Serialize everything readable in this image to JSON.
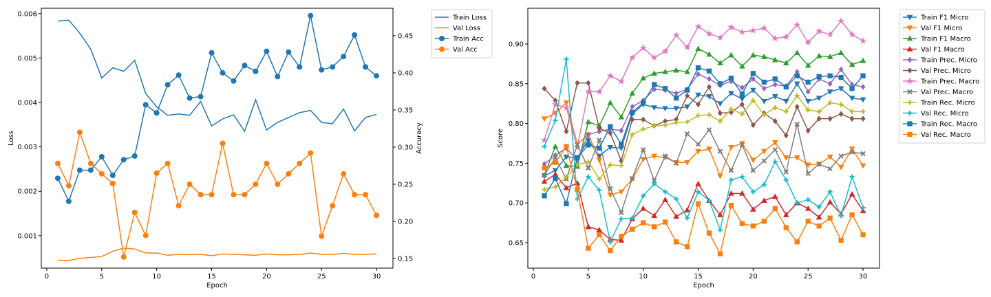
{
  "chart_data": [
    {
      "type": "line",
      "xlabel": "Epoch",
      "ylabel_left": "Loss",
      "ylabel_right": "Accuracy",
      "xlim": [
        -0.5,
        31.5
      ],
      "xticks": [
        "0",
        "5",
        "10",
        "15",
        "20",
        "25",
        "30"
      ],
      "ylim_left": [
        0.00027,
        0.00612
      ],
      "yticks_left": [
        "0.001",
        "0.002",
        "0.003",
        "0.004",
        "0.005",
        "0.006"
      ],
      "ylim_right": [
        0.137,
        0.487
      ],
      "yticks_right": [
        "0.15",
        "0.20",
        "0.25",
        "0.30",
        "0.35",
        "0.40",
        "0.45"
      ],
      "legend_position": "outside top-right",
      "x": [
        1,
        2,
        3,
        4,
        5,
        6,
        7,
        8,
        9,
        10,
        11,
        12,
        13,
        14,
        15,
        16,
        17,
        18,
        19,
        20,
        21,
        22,
        23,
        24,
        25,
        26,
        27,
        28,
        29,
        30
      ],
      "series": [
        {
          "name": "Train Loss",
          "axis": "left",
          "color": "#1f77b4",
          "marker": "none",
          "values": [
            0.00583,
            0.00585,
            0.00556,
            0.0052,
            0.00455,
            0.00478,
            0.0047,
            0.00495,
            0.0042,
            0.0039,
            0.00371,
            0.00374,
            0.00371,
            0.00402,
            0.00347,
            0.00363,
            0.00372,
            0.00335,
            0.00406,
            0.00338,
            0.00355,
            0.00366,
            0.00377,
            0.00382,
            0.00355,
            0.00352,
            0.00385,
            0.00336,
            0.00366,
            0.00373
          ]
        },
        {
          "name": "Val Loss",
          "axis": "left",
          "color": "#ff7f0e",
          "marker": "none",
          "values": [
            0.00045,
            0.00044,
            0.00049,
            0.00051,
            0.00053,
            0.00065,
            0.00072,
            0.0007,
            0.00061,
            0.00061,
            0.00056,
            0.00058,
            0.00058,
            0.00058,
            0.00055,
            0.00059,
            0.00058,
            0.00057,
            0.00056,
            0.00059,
            0.00057,
            0.00057,
            0.00058,
            0.00061,
            0.00058,
            0.00058,
            0.0006,
            0.00058,
            0.00058,
            0.00059
          ]
        },
        {
          "name": "Train Acc",
          "axis": "right",
          "color": "#1f77b4",
          "marker": "circle",
          "values": [
            0.258,
            0.227,
            0.269,
            0.269,
            0.287,
            0.262,
            0.283,
            0.288,
            0.357,
            0.346,
            0.384,
            0.397,
            0.366,
            0.368,
            0.427,
            0.4,
            0.389,
            0.41,
            0.402,
            0.429,
            0.395,
            0.428,
            0.408,
            0.477,
            0.404,
            0.408,
            0.422,
            0.451,
            0.408,
            0.396
          ]
        },
        {
          "name": "Val Acc",
          "axis": "right",
          "color": "#ff7f0e",
          "marker": "circle",
          "values": [
            0.278,
            0.248,
            0.32,
            0.278,
            0.264,
            0.251,
            0.152,
            0.212,
            0.181,
            0.265,
            0.278,
            0.221,
            0.25,
            0.236,
            0.236,
            0.305,
            0.236,
            0.236,
            0.25,
            0.278,
            0.25,
            0.264,
            0.278,
            0.292,
            0.18,
            0.221,
            0.264,
            0.236,
            0.236,
            0.208
          ]
        }
      ]
    },
    {
      "type": "line",
      "xlabel": "Epoch",
      "ylabel": "Score",
      "xlim": [
        -0.5,
        31.5
      ],
      "xticks": [
        "0",
        "5",
        "10",
        "15",
        "20",
        "25",
        "30"
      ],
      "ylim": [
        0.618,
        0.945
      ],
      "yticks": [
        "0.65",
        "0.70",
        "0.75",
        "0.80",
        "0.85",
        "0.90"
      ],
      "legend_position": "outside top-right",
      "x": [
        1,
        2,
        3,
        4,
        5,
        6,
        7,
        8,
        9,
        10,
        11,
        12,
        13,
        14,
        15,
        16,
        17,
        18,
        19,
        20,
        21,
        22,
        23,
        24,
        25,
        26,
        27,
        28,
        29,
        30
      ],
      "series": [
        {
          "name": "Train F1 Micro",
          "color": "#1f77b4",
          "marker": "tri-down",
          "values": [
            0.734,
            0.741,
            0.758,
            0.757,
            0.779,
            0.759,
            0.77,
            0.769,
            0.812,
            0.824,
            0.82,
            0.819,
            0.819,
            0.821,
            0.836,
            0.834,
            0.825,
            0.838,
            0.831,
            0.842,
            0.828,
            0.834,
            0.828,
            0.85,
            0.828,
            0.832,
            0.84,
            0.844,
            0.832,
            0.83
          ]
        },
        {
          "name": "Val F1 Micro",
          "color": "#ff7f0e",
          "marker": "tri-down",
          "values": [
            0.806,
            0.813,
            0.826,
            0.774,
            0.786,
            0.754,
            0.71,
            0.714,
            0.73,
            0.755,
            0.759,
            0.757,
            0.751,
            0.751,
            0.765,
            0.768,
            0.734,
            0.77,
            0.775,
            0.754,
            0.765,
            0.776,
            0.757,
            0.757,
            0.748,
            0.749,
            0.758,
            0.745,
            0.768,
            0.747
          ]
        },
        {
          "name": "Train F1 Macro",
          "color": "#2ca02c",
          "marker": "tri-up",
          "values": [
            0.735,
            0.771,
            0.747,
            0.746,
            0.802,
            0.797,
            0.826,
            0.808,
            0.838,
            0.857,
            0.863,
            0.865,
            0.867,
            0.865,
            0.894,
            0.887,
            0.876,
            0.886,
            0.872,
            0.886,
            0.884,
            0.88,
            0.876,
            0.889,
            0.873,
            0.885,
            0.884,
            0.889,
            0.874,
            0.879
          ]
        },
        {
          "name": "Val F1 Macro",
          "color": "#d62728",
          "marker": "tri-up",
          "values": [
            0.727,
            0.736,
            0.719,
            0.725,
            0.67,
            0.666,
            0.654,
            0.653,
            0.68,
            0.693,
            0.684,
            0.704,
            0.683,
            0.691,
            0.724,
            0.703,
            0.685,
            0.712,
            0.712,
            0.692,
            0.703,
            0.708,
            0.685,
            0.7,
            0.693,
            0.682,
            0.701,
            0.686,
            0.711,
            0.69
          ]
        },
        {
          "name": "Train Prec. Micro",
          "color": "#9467bd",
          "marker": "diamond",
          "values": [
            0.749,
            0.76,
            0.769,
            0.754,
            0.786,
            0.79,
            0.793,
            0.791,
            0.821,
            0.829,
            0.843,
            0.842,
            0.838,
            0.843,
            0.862,
            0.856,
            0.848,
            0.853,
            0.845,
            0.856,
            0.844,
            0.849,
            0.847,
            0.865,
            0.84,
            0.856,
            0.85,
            0.868,
            0.849,
            0.846
          ]
        },
        {
          "name": "Val Prec. Micro",
          "color": "#8c564b",
          "marker": "diamond",
          "values": [
            0.844,
            0.829,
            0.79,
            0.851,
            0.851,
            0.794,
            0.788,
            0.753,
            0.805,
            0.805,
            0.797,
            0.803,
            0.805,
            0.835,
            0.824,
            0.846,
            0.813,
            0.814,
            0.824,
            0.798,
            0.813,
            0.803,
            0.785,
            0.821,
            0.791,
            0.806,
            0.806,
            0.812,
            0.806,
            0.806
          ]
        },
        {
          "name": "Train Prec. Macro",
          "color": "#e377c2",
          "marker": "star",
          "values": [
            0.779,
            0.824,
            0.82,
            0.77,
            0.84,
            0.84,
            0.86,
            0.853,
            0.883,
            0.895,
            0.883,
            0.891,
            0.911,
            0.896,
            0.922,
            0.913,
            0.908,
            0.921,
            0.915,
            0.917,
            0.92,
            0.907,
            0.909,
            0.924,
            0.902,
            0.916,
            0.912,
            0.929,
            0.912,
            0.904
          ]
        },
        {
          "name": "Val Prec. Macro",
          "color": "#7f7f7f",
          "marker": "x",
          "values": [
            0.735,
            0.757,
            0.73,
            0.773,
            0.744,
            0.779,
            0.718,
            0.688,
            0.731,
            0.767,
            0.728,
            0.759,
            0.75,
            0.787,
            0.774,
            0.792,
            0.765,
            0.741,
            0.773,
            0.741,
            0.753,
            0.767,
            0.739,
            0.799,
            0.737,
            0.749,
            0.743,
            0.759,
            0.764,
            0.762
          ]
        },
        {
          "name": "Train Rec. Micro",
          "color": "#bcbd22",
          "marker": "plus",
          "values": [
            0.717,
            0.72,
            0.733,
            0.748,
            0.752,
            0.73,
            0.748,
            0.747,
            0.786,
            0.793,
            0.797,
            0.798,
            0.801,
            0.802,
            0.81,
            0.811,
            0.803,
            0.818,
            0.812,
            0.829,
            0.811,
            0.82,
            0.815,
            0.835,
            0.817,
            0.815,
            0.826,
            0.824,
            0.815,
            0.815
          ]
        },
        {
          "name": "Val Rec. Micro",
          "color": "#17becf",
          "marker": "plus",
          "values": [
            0.771,
            0.804,
            0.881,
            0.705,
            0.733,
            0.716,
            0.651,
            0.68,
            0.681,
            0.709,
            0.724,
            0.714,
            0.705,
            0.681,
            0.714,
            0.703,
            0.666,
            0.729,
            0.733,
            0.714,
            0.723,
            0.752,
            0.729,
            0.7,
            0.704,
            0.695,
            0.714,
            0.684,
            0.733,
            0.694
          ]
        },
        {
          "name": "Train Rec. Macro",
          "color": "#1f77b4",
          "marker": "square",
          "values": [
            0.709,
            0.731,
            0.699,
            0.757,
            0.773,
            0.769,
            0.796,
            0.774,
            0.814,
            0.826,
            0.849,
            0.844,
            0.832,
            0.842,
            0.87,
            0.866,
            0.85,
            0.857,
            0.837,
            0.863,
            0.852,
            0.856,
            0.846,
            0.86,
            0.852,
            0.859,
            0.86,
            0.858,
            0.844,
            0.86
          ]
        },
        {
          "name": "Val Rec. Macro",
          "color": "#ff7f0e",
          "marker": "square",
          "values": [
            0.744,
            0.751,
            0.771,
            0.717,
            0.643,
            0.66,
            0.64,
            0.658,
            0.667,
            0.675,
            0.67,
            0.676,
            0.651,
            0.645,
            0.699,
            0.662,
            0.636,
            0.697,
            0.674,
            0.671,
            0.677,
            0.693,
            0.669,
            0.651,
            0.677,
            0.671,
            0.681,
            0.653,
            0.685,
            0.66
          ]
        }
      ]
    }
  ]
}
